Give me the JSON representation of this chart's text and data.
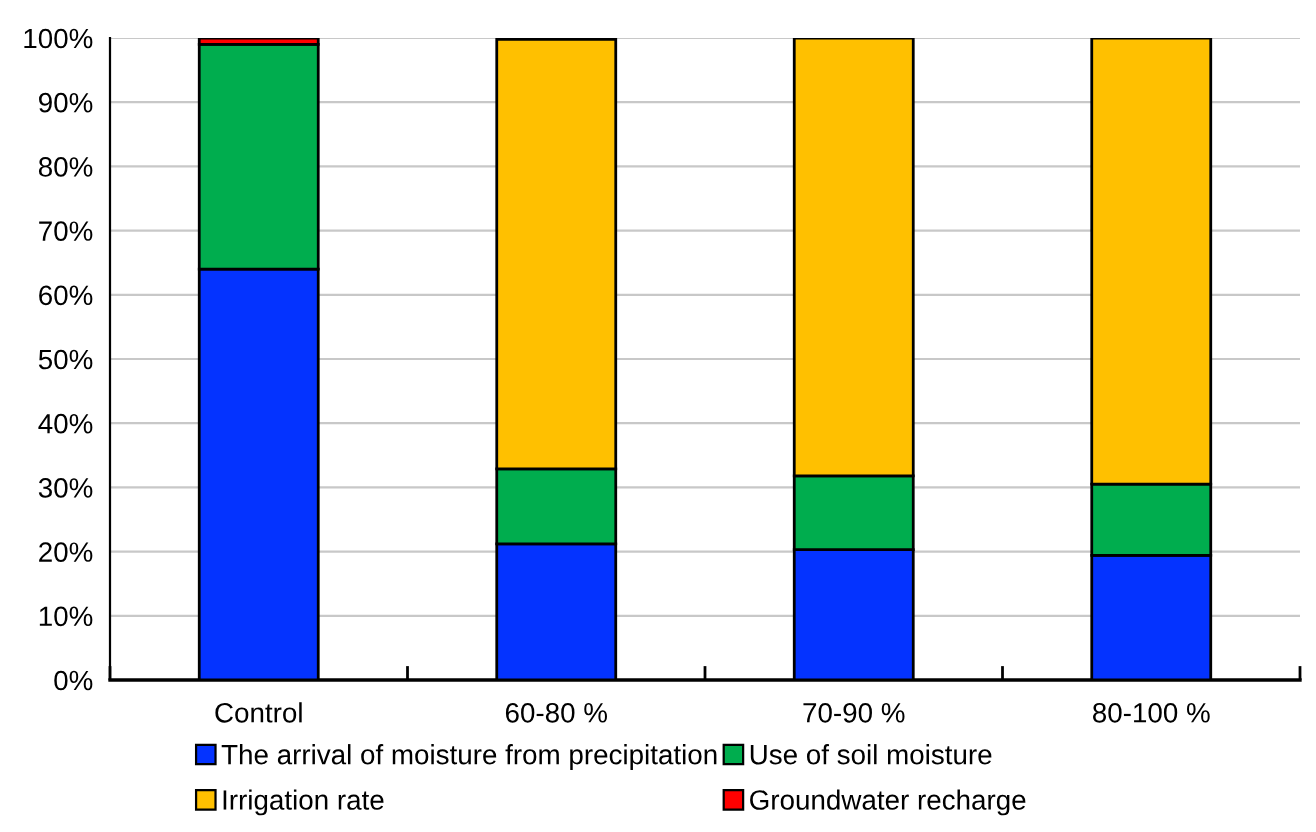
{
  "chart_data": {
    "type": "bar",
    "stacked": true,
    "categories": [
      "Control",
      "60-80 %",
      "70-90 %",
      "80-100 %"
    ],
    "series": [
      {
        "name": "The arrival of moisture from precipitation",
        "color": "#0433ff",
        "values": [
          64.0,
          21.2,
          20.3,
          19.4
        ]
      },
      {
        "name": "Use of soil moisture",
        "color": "#00ad4e",
        "values": [
          35.0,
          11.7,
          11.5,
          11.1
        ]
      },
      {
        "name": "Irrigation rate",
        "color": "#ffc000",
        "values": [
          null,
          66.9,
          68.2,
          69.5
        ]
      },
      {
        "name": "Groundwater recharge",
        "color": "#ff0000",
        "values": [
          1.0,
          null,
          null,
          null
        ]
      }
    ],
    "ylim": [
      0,
      100
    ],
    "yticks": [
      {
        "value": 0,
        "label": "0%"
      },
      {
        "value": 10,
        "label": "10%"
      },
      {
        "value": 20,
        "label": "20%"
      },
      {
        "value": 30,
        "label": "30%"
      },
      {
        "value": 40,
        "label": "40%"
      },
      {
        "value": 50,
        "label": "50%"
      },
      {
        "value": 60,
        "label": "60%"
      },
      {
        "value": 70,
        "label": "70%"
      },
      {
        "value": 80,
        "label": "80%"
      },
      {
        "value": 90,
        "label": "90%"
      },
      {
        "value": 100,
        "label": "100%"
      }
    ],
    "grid": "y",
    "legend": "bottom"
  }
}
